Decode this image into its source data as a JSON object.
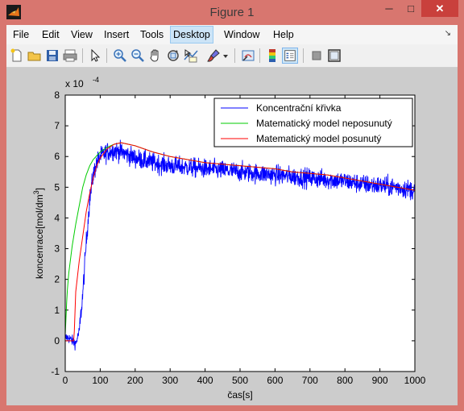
{
  "window": {
    "title": "Figure 1",
    "minimize": "─",
    "maximize": "□",
    "close": "✕"
  },
  "menu": {
    "items": [
      "File",
      "Edit",
      "View",
      "Insert",
      "Tools",
      "Desktop",
      "Window",
      "Help"
    ],
    "active": "Desktop",
    "arrow": "↘"
  },
  "toolbar": {
    "buttons": [
      "new-figure-icon",
      "open-file-icon",
      "save-icon",
      "print-icon",
      "edit-plot-arrow-icon",
      "zoom-in-icon",
      "zoom-out-icon",
      "pan-hand-icon",
      "rotate-3d-icon",
      "data-cursor-icon",
      "brush-icon",
      "brush-dropdown-icon",
      "link-plot-icon",
      "insert-colorbar-icon",
      "insert-legend-icon",
      "hide-plot-tools-icon",
      "show-plot-tools-icon"
    ]
  },
  "chart_data": {
    "type": "line",
    "xlabel": "čas[s]",
    "ylabel": "koncenrace[mol/dm³]",
    "ylabel_main": "koncenrace[mol/dm",
    "ylabel_sup": "3",
    "ylabel_end": "]",
    "exponent_label": "x 10",
    "exponent_power": "-4",
    "xlim": [
      0,
      1000
    ],
    "ylim": [
      -1,
      8
    ],
    "xticks": [
      0,
      100,
      200,
      300,
      400,
      500,
      600,
      700,
      800,
      900,
      1000
    ],
    "yticks": [
      -1,
      0,
      1,
      2,
      3,
      4,
      5,
      6,
      7,
      8
    ],
    "legend_position": "top-right",
    "grid": false,
    "series": [
      {
        "name": "Koncentrační křivka",
        "color": "#0000ff",
        "noisy": true,
        "x": [
          0,
          10,
          20,
          30,
          40,
          50,
          60,
          70,
          80,
          90,
          100,
          120,
          140,
          160,
          180,
          200,
          250,
          300,
          350,
          400,
          450,
          500,
          550,
          600,
          650,
          700,
          750,
          800,
          850,
          900,
          950,
          1000
        ],
        "y": [
          0.1,
          0.1,
          0.0,
          -0.1,
          0.3,
          1.5,
          3.2,
          4.6,
          5.4,
          5.8,
          6.0,
          6.15,
          6.2,
          6.15,
          6.05,
          5.95,
          5.8,
          5.7,
          5.65,
          5.6,
          5.55,
          5.5,
          5.45,
          5.4,
          5.35,
          5.3,
          5.25,
          5.2,
          5.1,
          5.05,
          5.0,
          4.9
        ]
      },
      {
        "name": "Matematický model neposunutý",
        "color": "#00cc00",
        "noisy": false,
        "x": [
          0,
          5,
          10,
          20,
          30,
          40,
          50,
          60,
          70,
          80,
          100,
          120,
          140,
          160,
          180,
          200,
          250,
          300,
          350,
          400,
          450,
          500,
          550,
          600,
          650,
          700,
          750,
          800,
          850,
          900,
          950,
          1000
        ],
        "y": [
          0.2,
          1.5,
          2.2,
          3.1,
          3.8,
          4.4,
          5.0,
          5.4,
          5.7,
          5.9,
          6.15,
          6.3,
          6.4,
          6.45,
          6.4,
          6.35,
          6.15,
          6.0,
          5.9,
          5.8,
          5.75,
          5.7,
          5.65,
          5.6,
          5.5,
          5.45,
          5.4,
          5.3,
          5.2,
          5.1,
          5.0,
          4.9
        ]
      },
      {
        "name": "Matematický model posunutý",
        "color": "#ff0000",
        "noisy": false,
        "x": [
          0,
          10,
          20,
          25,
          30,
          40,
          50,
          60,
          70,
          80,
          90,
          100,
          120,
          140,
          160,
          180,
          200,
          250,
          300,
          350,
          400,
          450,
          500,
          550,
          600,
          650,
          700,
          750,
          800,
          850,
          900,
          950,
          1000
        ],
        "y": [
          0,
          0,
          0,
          0.0,
          1.6,
          2.6,
          3.4,
          4.2,
          4.8,
          5.3,
          5.7,
          5.95,
          6.25,
          6.4,
          6.45,
          6.4,
          6.35,
          6.15,
          6.0,
          5.9,
          5.8,
          5.75,
          5.7,
          5.65,
          5.6,
          5.5,
          5.45,
          5.4,
          5.3,
          5.2,
          5.1,
          5.0,
          4.9
        ]
      }
    ]
  }
}
